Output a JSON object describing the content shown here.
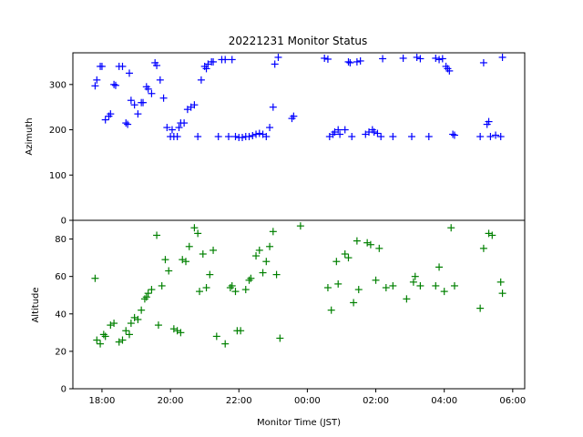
{
  "chart_data": {
    "type": "scatter",
    "title": "20221231 Monitor Status",
    "xlabel": "Monitor Time (JST)",
    "x_unit": "hour",
    "x_range": [
      17.15,
      30.35
    ],
    "x_ticks": [
      {
        "value": 18,
        "label": "18:00"
      },
      {
        "value": 20,
        "label": "20:00"
      },
      {
        "value": 22,
        "label": "22:00"
      },
      {
        "value": 24,
        "label": "00:00"
      },
      {
        "value": 26,
        "label": "02:00"
      },
      {
        "value": 28,
        "label": "04:00"
      },
      {
        "value": 30,
        "label": "06:00"
      }
    ],
    "marker": "+",
    "grid": false,
    "panels": [
      {
        "name": "azimuth",
        "ylabel": "Azimuth",
        "ylim": [
          0,
          370
        ],
        "y_ticks": [
          0,
          100,
          200,
          300
        ],
        "color": "#0000ff",
        "points": [
          [
            17.8,
            297
          ],
          [
            17.85,
            310
          ],
          [
            17.95,
            340
          ],
          [
            18.0,
            340
          ],
          [
            18.1,
            222
          ],
          [
            18.2,
            230
          ],
          [
            18.25,
            235
          ],
          [
            18.35,
            300
          ],
          [
            18.4,
            298
          ],
          [
            18.5,
            340
          ],
          [
            18.6,
            340
          ],
          [
            18.7,
            215
          ],
          [
            18.75,
            212
          ],
          [
            18.8,
            325
          ],
          [
            18.85,
            265
          ],
          [
            18.95,
            255
          ],
          [
            19.05,
            235
          ],
          [
            19.15,
            260
          ],
          [
            19.2,
            260
          ],
          [
            19.3,
            295
          ],
          [
            19.35,
            290
          ],
          [
            19.45,
            280
          ],
          [
            19.55,
            348
          ],
          [
            19.6,
            342
          ],
          [
            19.7,
            310
          ],
          [
            19.8,
            270
          ],
          [
            19.9,
            205
          ],
          [
            20.0,
            185
          ],
          [
            20.05,
            200
          ],
          [
            20.1,
            185
          ],
          [
            20.2,
            185
          ],
          [
            20.25,
            205
          ],
          [
            20.3,
            215
          ],
          [
            20.4,
            215
          ],
          [
            20.5,
            245
          ],
          [
            20.6,
            250
          ],
          [
            20.7,
            255
          ],
          [
            20.8,
            185
          ],
          [
            20.9,
            310
          ],
          [
            21.0,
            340
          ],
          [
            21.05,
            335
          ],
          [
            21.1,
            345
          ],
          [
            21.2,
            350
          ],
          [
            21.25,
            350
          ],
          [
            21.4,
            185
          ],
          [
            21.5,
            355
          ],
          [
            21.6,
            355
          ],
          [
            21.7,
            185
          ],
          [
            21.8,
            355
          ],
          [
            21.9,
            185
          ],
          [
            22.0,
            183
          ],
          [
            22.1,
            183
          ],
          [
            22.2,
            185
          ],
          [
            22.3,
            185
          ],
          [
            22.4,
            187
          ],
          [
            22.5,
            190
          ],
          [
            22.6,
            192
          ],
          [
            22.7,
            190
          ],
          [
            22.8,
            185
          ],
          [
            22.9,
            205
          ],
          [
            23.0,
            250
          ],
          [
            23.05,
            345
          ],
          [
            23.15,
            360
          ],
          [
            23.55,
            225
          ],
          [
            23.6,
            230
          ],
          [
            24.5,
            358
          ],
          [
            24.6,
            356
          ],
          [
            24.65,
            185
          ],
          [
            24.75,
            190
          ],
          [
            24.8,
            195
          ],
          [
            24.9,
            200
          ],
          [
            24.95,
            190
          ],
          [
            25.1,
            200
          ],
          [
            25.2,
            350
          ],
          [
            25.25,
            348
          ],
          [
            25.3,
            185
          ],
          [
            25.45,
            350
          ],
          [
            25.55,
            352
          ],
          [
            25.7,
            190
          ],
          [
            25.8,
            195
          ],
          [
            25.9,
            200
          ],
          [
            25.95,
            195
          ],
          [
            26.05,
            192
          ],
          [
            26.15,
            185
          ],
          [
            26.2,
            357
          ],
          [
            26.5,
            185
          ],
          [
            26.8,
            358
          ],
          [
            27.05,
            185
          ],
          [
            27.2,
            360
          ],
          [
            27.3,
            357
          ],
          [
            27.55,
            185
          ],
          [
            27.75,
            358
          ],
          [
            27.85,
            355
          ],
          [
            27.95,
            357
          ],
          [
            28.05,
            340
          ],
          [
            28.1,
            335
          ],
          [
            28.15,
            330
          ],
          [
            28.25,
            190
          ],
          [
            28.3,
            188
          ],
          [
            29.05,
            185
          ],
          [
            29.15,
            348
          ],
          [
            29.25,
            212
          ],
          [
            29.3,
            218
          ],
          [
            29.35,
            185
          ],
          [
            29.5,
            188
          ],
          [
            29.65,
            185
          ],
          [
            29.7,
            360
          ]
        ]
      },
      {
        "name": "altitude",
        "ylabel": "Altitude",
        "ylim": [
          0,
          90
        ],
        "y_ticks": [
          0,
          20,
          40,
          60,
          80
        ],
        "color": "#008000",
        "points": [
          [
            17.8,
            59
          ],
          [
            17.85,
            26
          ],
          [
            17.95,
            24
          ],
          [
            18.05,
            29
          ],
          [
            18.1,
            28
          ],
          [
            18.25,
            34
          ],
          [
            18.35,
            35
          ],
          [
            18.5,
            25
          ],
          [
            18.6,
            26
          ],
          [
            18.7,
            31
          ],
          [
            18.8,
            29
          ],
          [
            18.85,
            35
          ],
          [
            18.95,
            38
          ],
          [
            19.05,
            37
          ],
          [
            19.15,
            42
          ],
          [
            19.25,
            48
          ],
          [
            19.3,
            49
          ],
          [
            19.35,
            51
          ],
          [
            19.45,
            53
          ],
          [
            19.6,
            82
          ],
          [
            19.65,
            34
          ],
          [
            19.75,
            55
          ],
          [
            19.85,
            69
          ],
          [
            19.95,
            63
          ],
          [
            20.1,
            32
          ],
          [
            20.2,
            31
          ],
          [
            20.3,
            30
          ],
          [
            20.35,
            69
          ],
          [
            20.45,
            68
          ],
          [
            20.55,
            76
          ],
          [
            20.7,
            86
          ],
          [
            20.8,
            83
          ],
          [
            20.85,
            52
          ],
          [
            20.95,
            72
          ],
          [
            21.05,
            54
          ],
          [
            21.15,
            61
          ],
          [
            21.25,
            74
          ],
          [
            21.35,
            28
          ],
          [
            21.6,
            24
          ],
          [
            21.75,
            54
          ],
          [
            21.8,
            55
          ],
          [
            21.9,
            52
          ],
          [
            21.95,
            31
          ],
          [
            22.05,
            31
          ],
          [
            22.2,
            53
          ],
          [
            22.3,
            58
          ],
          [
            22.35,
            59
          ],
          [
            22.5,
            71
          ],
          [
            22.6,
            74
          ],
          [
            22.7,
            62
          ],
          [
            22.8,
            68
          ],
          [
            22.9,
            76
          ],
          [
            23.0,
            84
          ],
          [
            23.1,
            61
          ],
          [
            23.2,
            27
          ],
          [
            23.8,
            87
          ],
          [
            24.6,
            54
          ],
          [
            24.7,
            42
          ],
          [
            24.85,
            68
          ],
          [
            24.9,
            56
          ],
          [
            25.1,
            72
          ],
          [
            25.2,
            70
          ],
          [
            25.35,
            46
          ],
          [
            25.45,
            79
          ],
          [
            25.5,
            53
          ],
          [
            25.75,
            78
          ],
          [
            25.85,
            77
          ],
          [
            26.0,
            58
          ],
          [
            26.1,
            75
          ],
          [
            26.3,
            54
          ],
          [
            26.5,
            55
          ],
          [
            26.9,
            48
          ],
          [
            27.1,
            57
          ],
          [
            27.15,
            60
          ],
          [
            27.3,
            55
          ],
          [
            27.75,
            55
          ],
          [
            27.85,
            65
          ],
          [
            28.0,
            52
          ],
          [
            28.2,
            86
          ],
          [
            28.3,
            55
          ],
          [
            29.05,
            43
          ],
          [
            29.15,
            75
          ],
          [
            29.3,
            83
          ],
          [
            29.4,
            82
          ],
          [
            29.65,
            57
          ],
          [
            29.7,
            51
          ]
        ]
      }
    ]
  }
}
